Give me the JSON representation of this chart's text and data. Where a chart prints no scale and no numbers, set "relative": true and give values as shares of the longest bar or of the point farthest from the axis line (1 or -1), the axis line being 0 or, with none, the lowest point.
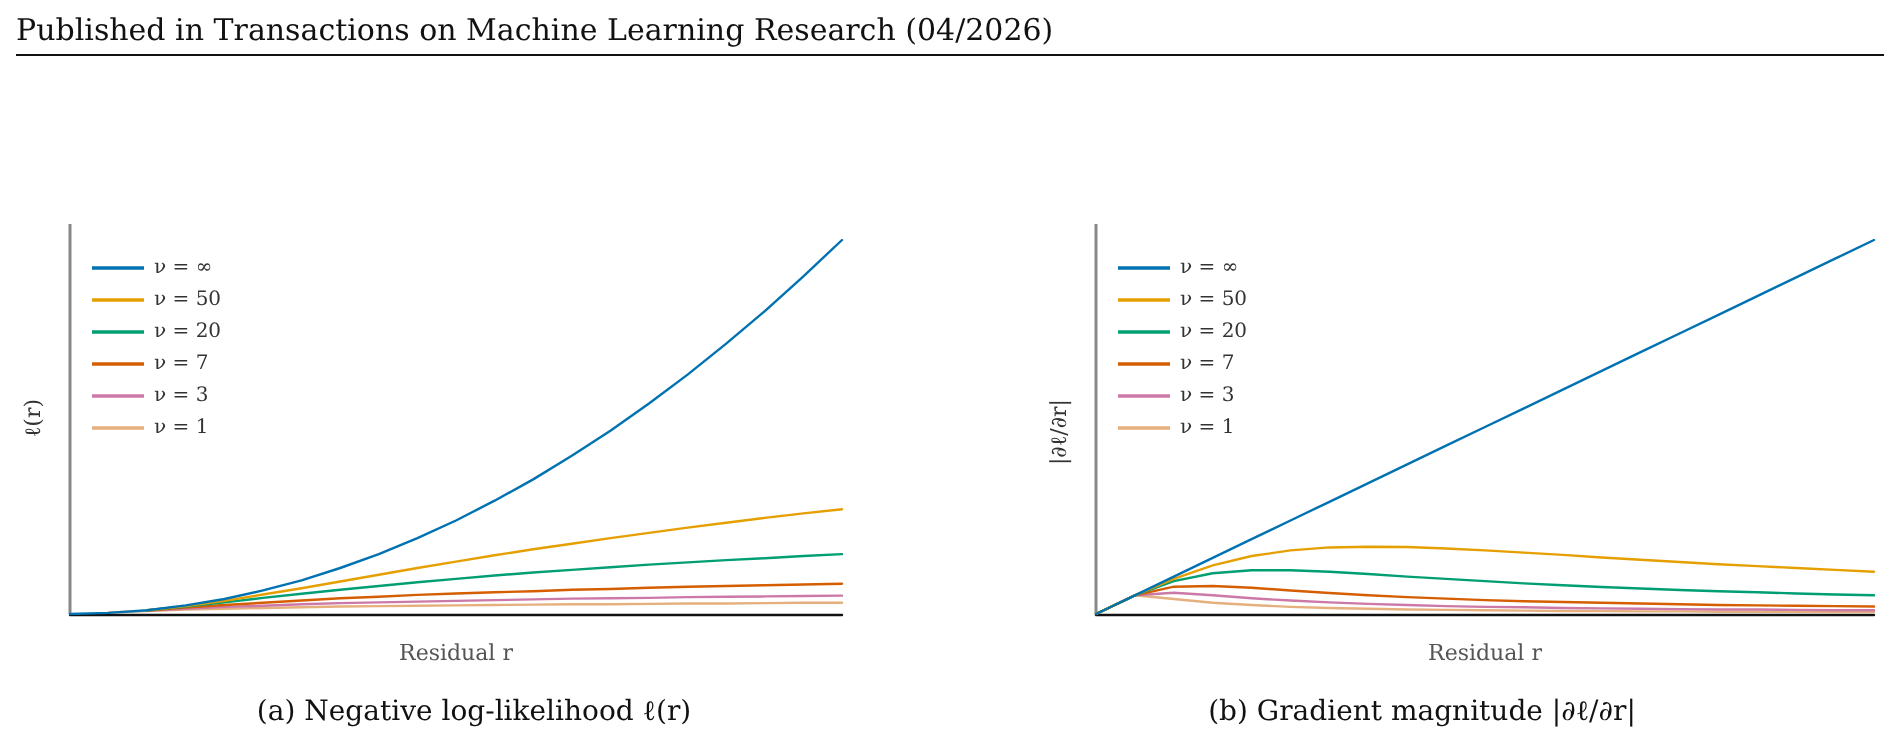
{
  "chart_data": [
    {
      "type": "line",
      "title": "(a) Negative log-likelihood ℓ(r)",
      "xlabel": "Residual r",
      "ylabel": "ℓ(r)",
      "annotations": [
        "Published in Transactions on Machine Learning Research (04/2026)"
      ],
      "relative": true,
      "grid": false,
      "legend": "top left",
      "marker": "none",
      "line_style": "solid",
      "categories": [
        null,
        null,
        null,
        null,
        null,
        null,
        null,
        null,
        null,
        null,
        null,
        null,
        null,
        null,
        null,
        null,
        null,
        null,
        null,
        null,
        null
      ],
      "series": [
        {
          "name": "ν = ∞",
          "color": "#0072b2",
          "values": [
            0,
            0.003,
            0.01,
            0.023,
            0.04,
            0.063,
            0.09,
            0.123,
            0.16,
            0.203,
            0.25,
            0.303,
            0.36,
            0.423,
            0.49,
            0.563,
            0.64,
            0.723,
            0.81,
            0.903,
            1
          ]
        },
        {
          "name": "ν = 50",
          "color": "#e69f00",
          "values": [
            null,
            null,
            0.01,
            0.021,
            0.035,
            0.052,
            0.069,
            0.087,
            0.105,
            0.123,
            0.14,
            0.157,
            0.173,
            0.188,
            0.203,
            0.217,
            0.231,
            0.244,
            0.257,
            0.269,
            0.28
          ]
        },
        {
          "name": "ν = 20",
          "color": "#009e73",
          "values": [
            null,
            null,
            0.01,
            0.02,
            0.031,
            0.043,
            0.054,
            0.065,
            0.075,
            0.085,
            0.094,
            0.103,
            0.111,
            0.118,
            0.125,
            0.132,
            0.138,
            0.144,
            0.149,
            0.155,
            0.16
          ]
        },
        {
          "name": "ν = 7",
          "color": "#d55e00",
          "values": [
            null,
            null,
            0.009,
            0.017,
            0.024,
            0.03,
            0.036,
            0.042,
            0.046,
            0.051,
            0.055,
            0.058,
            0.061,
            0.065,
            0.067,
            0.07,
            0.073,
            0.075,
            0.077,
            0.079,
            0.081
          ]
        },
        {
          "name": "ν = 3",
          "color": "#cc79a7",
          "values": [
            null,
            null,
            0.009,
            0.014,
            0.019,
            0.022,
            0.026,
            0.029,
            0.031,
            0.033,
            0.035,
            0.037,
            0.039,
            0.041,
            0.042,
            0.043,
            0.045,
            0.046,
            0.047,
            0.048,
            0.049
          ]
        },
        {
          "name": "ν = 1",
          "color": "#e5b07e",
          "values": [
            null,
            0.004,
            0.008,
            0.012,
            0.014,
            0.016,
            0.018,
            0.02,
            0.021,
            0.022,
            0.023,
            0.024,
            0.025,
            0.026,
            0.026,
            0.027,
            0.028,
            0.028,
            0.029,
            0.03,
            0.03
          ]
        }
      ]
    },
    {
      "type": "line",
      "title": "(b) Gradient magnitude |∂ℓ/∂r|",
      "xlabel": "Residual r",
      "ylabel": "|∂ℓ/∂r|",
      "relative": true,
      "grid": false,
      "legend": "top left",
      "marker": "none",
      "line_style": "solid",
      "categories": [
        null,
        null,
        null,
        null,
        null,
        null,
        null,
        null,
        null,
        null,
        null,
        null,
        null,
        null,
        null,
        null,
        null,
        null,
        null,
        null,
        null
      ],
      "series": [
        {
          "name": "ν = ∞",
          "color": "#0072b2",
          "values": [
            0,
            0.05,
            0.1,
            0.15,
            0.2,
            0.25,
            0.3,
            0.35,
            0.4,
            0.45,
            0.5,
            0.55,
            0.6,
            0.65,
            0.7,
            0.75,
            0.8,
            0.85,
            0.9,
            0.95,
            1
          ]
        },
        {
          "name": "ν = 50",
          "color": "#e69f00",
          "values": [
            0,
            0.05,
            0.094,
            0.13,
            0.155,
            0.17,
            0.178,
            0.18,
            0.179,
            0.175,
            0.17,
            0.164,
            0.158,
            0.151,
            0.145,
            0.139,
            0.133,
            0.128,
            0.123,
            0.118,
            0.113
          ]
        },
        {
          "name": "ν = 20",
          "color": "#009e73",
          "values": [
            0,
            0.05,
            0.088,
            0.109,
            0.117,
            0.117,
            0.113,
            0.107,
            0.1,
            0.094,
            0.088,
            0.082,
            0.077,
            0.072,
            0.068,
            0.064,
            0.061,
            0.058,
            0.055,
            0.052,
            0.05
          ]
        },
        {
          "name": "ν = 7",
          "color": "#d55e00",
          "values": [
            0,
            0.05,
            0.073,
            0.075,
            0.07,
            0.063,
            0.056,
            0.05,
            0.045,
            0.041,
            0.037,
            0.034,
            0.032,
            0.03,
            0.028,
            0.026,
            0.024,
            0.023,
            0.022,
            0.021,
            0.02
          ]
        },
        {
          "name": "ν = 3",
          "color": "#cc79a7",
          "values": [
            0,
            0.05,
            0.057,
            0.05,
            0.042,
            0.036,
            0.031,
            0.027,
            0.024,
            0.021,
            0.019,
            0.018,
            0.016,
            0.015,
            0.014,
            0.013,
            0.012,
            0.012,
            0.011,
            0.01,
            0.01
          ]
        },
        {
          "name": "ν = 1",
          "color": "#e5b07e",
          "values": [
            0,
            0.05,
            0.04,
            0.03,
            0.024,
            0.019,
            0.016,
            0.014,
            0.012,
            0.011,
            0.01,
            0.009,
            0.008,
            0.008,
            0.007,
            0.007,
            0.006,
            0.006,
            0.006,
            0.005,
            0.005
          ]
        }
      ]
    }
  ]
}
